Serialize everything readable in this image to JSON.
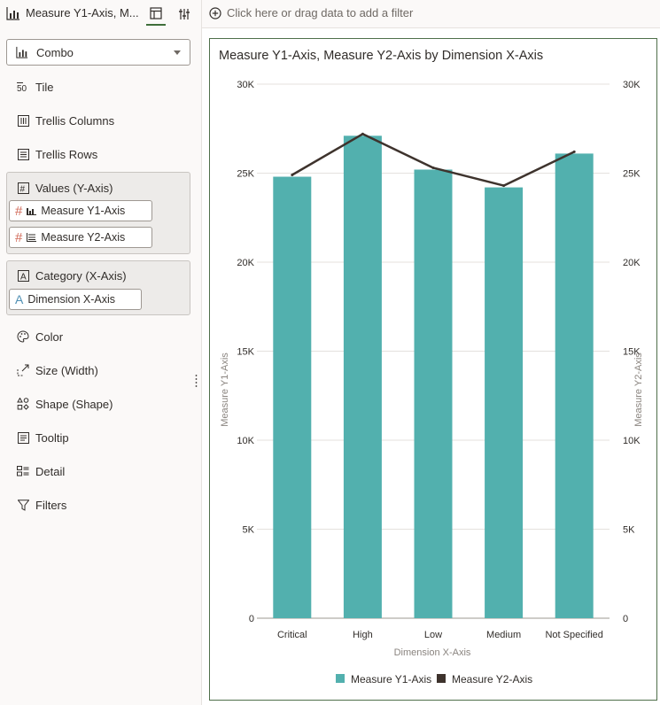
{
  "header": {
    "viz_title": "Measure Y1-Axis, M...",
    "filter_prompt": "Click here or drag data to add a filter"
  },
  "grammar": {
    "viz_type": "Combo",
    "shelves": {
      "tile": "Tile",
      "trellis_columns": "Trellis Columns",
      "trellis_rows": "Trellis Rows",
      "values": "Values (Y-Axis)",
      "category": "Category (X-Axis)",
      "color": "Color",
      "size": "Size (Width)",
      "shape": "Shape (Shape)",
      "tooltip": "Tooltip",
      "detail": "Detail",
      "filters": "Filters"
    },
    "values_pills": [
      "Measure Y1-Axis",
      "Measure Y2-Axis"
    ],
    "category_pills": [
      "Dimension X-Axis"
    ]
  },
  "colors": {
    "bar": "#52b0ae",
    "line": "#3e332d",
    "accent": "#3f6e3a",
    "measure_icon": "#d26b5a",
    "attribute_icon": "#4e8fb3"
  },
  "chart_data": {
    "type": "bar",
    "title": "Measure Y1-Axis, Measure Y2-Axis by Dimension X-Axis",
    "xlabel": "Dimension X-Axis",
    "ylabel": "Measure Y1-Axis",
    "y2label": "Measure Y2-Axis",
    "categories": [
      "Critical",
      "High",
      "Low",
      "Medium",
      "Not Specified"
    ],
    "series": [
      {
        "name": "Measure Y1-Axis",
        "type": "bar",
        "axis": "y1",
        "values": [
          24800,
          27100,
          25200,
          24200,
          26100
        ]
      },
      {
        "name": "Measure Y2-Axis",
        "type": "line",
        "axis": "y2",
        "values": [
          24900,
          27200,
          25300,
          24300,
          26200
        ]
      }
    ],
    "ylim": [
      0,
      30000
    ],
    "y2lim": [
      0,
      30000
    ],
    "yticks": [
      "0",
      "5K",
      "10K",
      "15K",
      "20K",
      "25K",
      "30K"
    ],
    "grid": true,
    "legend": "bottom-center"
  }
}
